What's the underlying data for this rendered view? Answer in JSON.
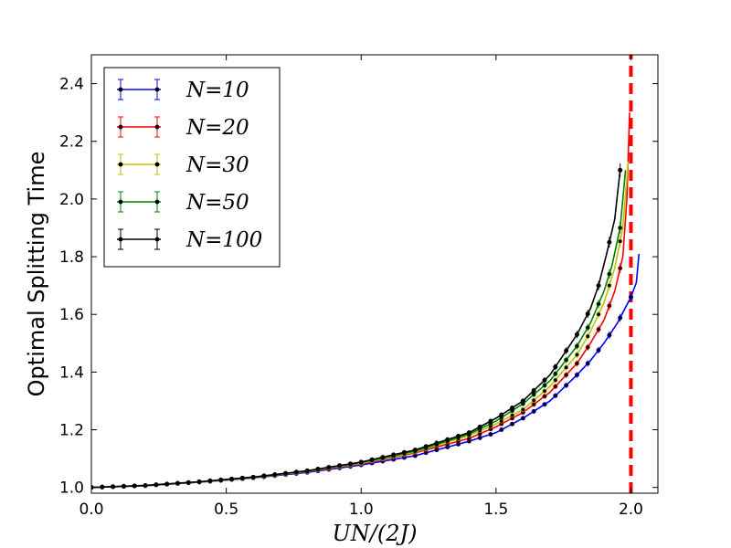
{
  "chart_data": {
    "type": "line",
    "title": "",
    "xlabel": "UN/(2J)",
    "ylabel": "Optimal Splitting Time",
    "xlim": [
      0.0,
      2.1
    ],
    "ylim": [
      0.98,
      2.5
    ],
    "xticks": [
      "0.0",
      "0.5",
      "1.0",
      "1.5",
      "2.0"
    ],
    "yticks": [
      "1.0",
      "1.2",
      "1.4",
      "1.6",
      "1.8",
      "2.0",
      "2.2",
      "2.4"
    ],
    "grid": false,
    "legend_position": "upper-left",
    "series": [
      {
        "name": "N=10",
        "color": "#0000ff",
        "x": [
          0.0,
          0.2,
          0.4,
          0.6,
          0.8,
          1.0,
          1.2,
          1.4,
          1.5,
          1.6,
          1.7,
          1.8,
          1.85,
          1.9,
          1.95,
          2.0,
          2.02,
          2.03
        ],
        "y": [
          1.0,
          1.006,
          1.018,
          1.033,
          1.052,
          1.078,
          1.11,
          1.16,
          1.19,
          1.24,
          1.3,
          1.39,
          1.44,
          1.5,
          1.57,
          1.66,
          1.71,
          1.81
        ]
      },
      {
        "name": "N=20",
        "color": "#ff0000",
        "x": [
          0.0,
          0.2,
          0.4,
          0.6,
          0.8,
          1.0,
          1.2,
          1.4,
          1.5,
          1.6,
          1.7,
          1.8,
          1.85,
          1.9,
          1.94,
          1.97,
          1.985,
          1.995
        ],
        "y": [
          1.0,
          1.006,
          1.019,
          1.034,
          1.055,
          1.082,
          1.12,
          1.17,
          1.21,
          1.26,
          1.33,
          1.43,
          1.5,
          1.58,
          1.68,
          1.8,
          2.0,
          2.3
        ]
      },
      {
        "name": "N=30",
        "color": "#bfbf00",
        "x": [
          0.0,
          0.2,
          0.4,
          0.6,
          0.8,
          1.0,
          1.2,
          1.4,
          1.5,
          1.6,
          1.7,
          1.8,
          1.85,
          1.9,
          1.94,
          1.97,
          1.99
        ],
        "y": [
          1.0,
          1.006,
          1.019,
          1.035,
          1.056,
          1.084,
          1.123,
          1.18,
          1.22,
          1.27,
          1.35,
          1.46,
          1.54,
          1.64,
          1.76,
          1.9,
          2.13
        ]
      },
      {
        "name": "N=50",
        "color": "#008000",
        "x": [
          0.0,
          0.2,
          0.4,
          0.6,
          0.8,
          1.0,
          1.2,
          1.4,
          1.5,
          1.6,
          1.7,
          1.8,
          1.85,
          1.9,
          1.93,
          1.96,
          1.98
        ],
        "y": [
          1.0,
          1.006,
          1.019,
          1.035,
          1.057,
          1.086,
          1.126,
          1.185,
          1.23,
          1.29,
          1.37,
          1.49,
          1.57,
          1.68,
          1.77,
          1.9,
          2.1
        ]
      },
      {
        "name": "N=100",
        "color": "#000000",
        "x": [
          0.0,
          0.2,
          0.4,
          0.6,
          0.8,
          1.0,
          1.2,
          1.4,
          1.5,
          1.6,
          1.7,
          1.8,
          1.85,
          1.88,
          1.91,
          1.94,
          1.96
        ],
        "y": [
          1.0,
          1.007,
          1.02,
          1.036,
          1.058,
          1.088,
          1.13,
          1.19,
          1.24,
          1.3,
          1.39,
          1.53,
          1.62,
          1.7,
          1.81,
          1.93,
          2.1
        ]
      }
    ],
    "reference_line": {
      "x": 2.0,
      "color": "#ff0000",
      "style": "dashed"
    }
  }
}
